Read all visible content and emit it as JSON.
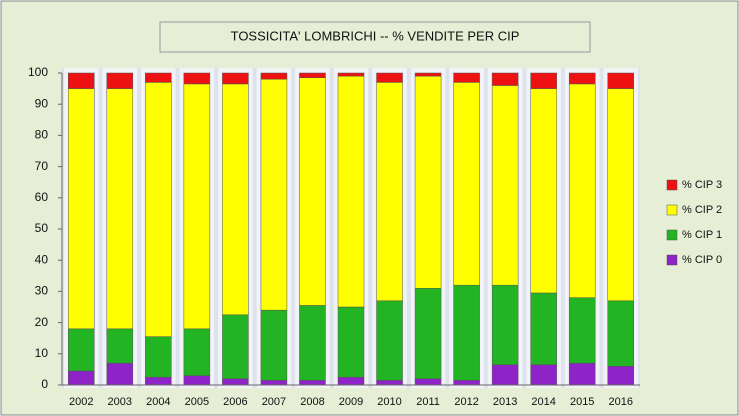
{
  "chart_data": {
    "type": "stacked_bar",
    "title": "TOSSICITA' LOMBRICHI -- % VENDITE PER CIP",
    "categories": [
      "2002",
      "2003",
      "2004",
      "2005",
      "2006",
      "2007",
      "2008",
      "2009",
      "2010",
      "2011",
      "2012",
      "2013",
      "2014",
      "2015",
      "2016"
    ],
    "series": [
      {
        "name": "% CIP 0",
        "color": "#8e24c8",
        "values": [
          4.5,
          7,
          2.5,
          3,
          2,
          1.5,
          1.5,
          2.5,
          1.5,
          2,
          1.5,
          6.5,
          6.5,
          7,
          6
        ]
      },
      {
        "name": "% CIP 1",
        "color": "#22b422",
        "values": [
          13.5,
          11,
          13,
          15,
          20.5,
          22.5,
          24,
          22.5,
          25.5,
          29,
          30.5,
          25.5,
          23,
          21,
          21
        ]
      },
      {
        "name": "% CIP 2",
        "color": "#ffff00",
        "values": [
          77,
          77,
          81.5,
          78.5,
          74,
          74,
          73,
          74,
          70,
          68,
          65,
          64,
          65.5,
          68.5,
          68
        ]
      },
      {
        "name": "% CIP 3",
        "color": "#ee1111",
        "values": [
          5,
          5,
          3,
          3.5,
          3.5,
          2,
          1.5,
          1,
          3,
          1,
          3,
          4,
          5,
          3.5,
          5
        ]
      }
    ],
    "ylim": [
      0,
      100
    ],
    "yticks": [
      0,
      10,
      20,
      30,
      40,
      50,
      60,
      70,
      80,
      90,
      100
    ],
    "legend": "right"
  }
}
